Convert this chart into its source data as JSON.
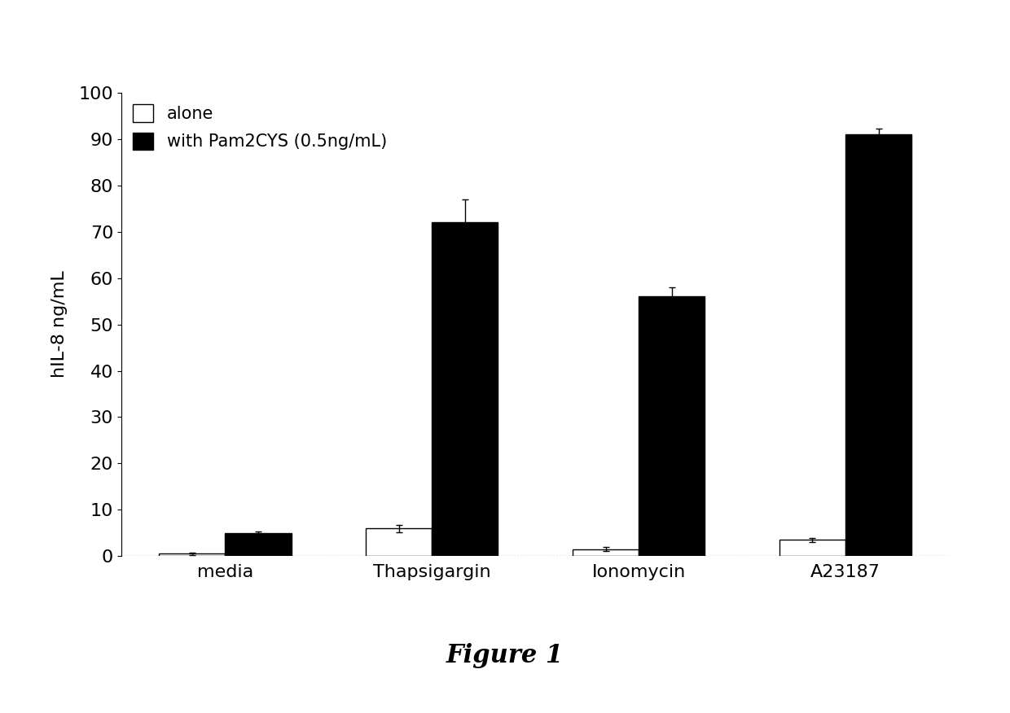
{
  "categories": [
    "media",
    "Thapsigargin",
    "Ionomycin",
    "A23187"
  ],
  "alone_values": [
    0.5,
    6.0,
    1.5,
    3.5
  ],
  "pam2cys_values": [
    5.0,
    72.0,
    56.0,
    91.0
  ],
  "alone_errors": [
    0.2,
    0.8,
    0.4,
    0.4
  ],
  "pam2cys_errors": [
    0.4,
    5.0,
    2.0,
    1.2
  ],
  "ylabel": "hIL-8 ng/mL",
  "ylim": [
    0,
    100
  ],
  "yticks": [
    0,
    10,
    20,
    30,
    40,
    50,
    60,
    70,
    80,
    90,
    100
  ],
  "legend_alone": "alone",
  "legend_pam2cys": "with Pam2CYS (0.5ng/mL)",
  "figure_label": "Figure 1",
  "bar_width": 0.32,
  "alone_color": "white",
  "pam2cys_color": "black",
  "edge_color": "black",
  "background_color": "white",
  "label_fontsize": 16,
  "tick_fontsize": 16,
  "legend_fontsize": 15,
  "figure_label_fontsize": 22,
  "xlabel_fontsize": 16
}
